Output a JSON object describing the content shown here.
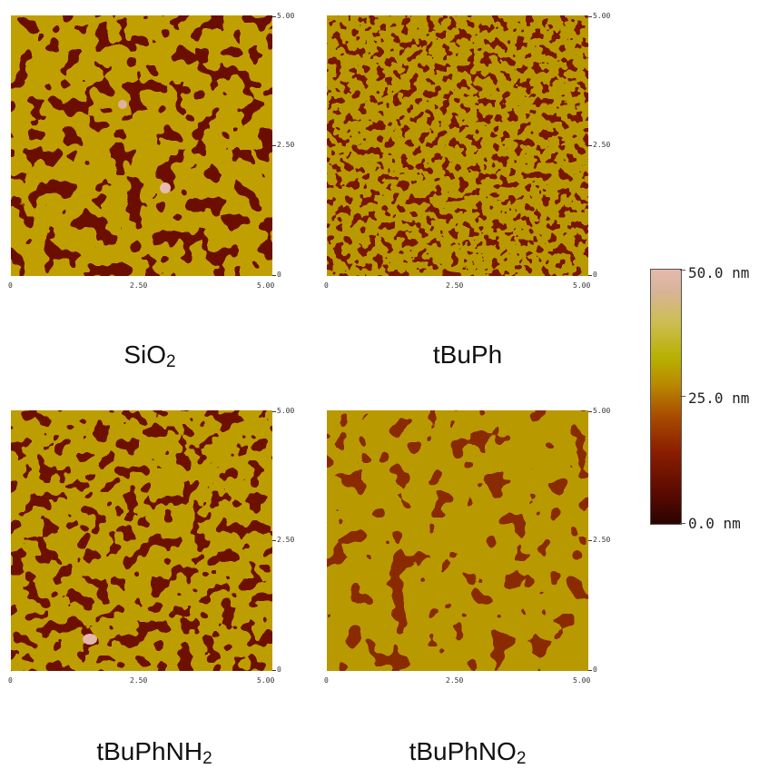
{
  "panels": [
    {
      "id": "sio2",
      "label_main": "SiO",
      "label_sub": "2",
      "y_ticks": [
        "5.00",
        "2.50",
        "0"
      ],
      "x_ticks": [
        "0",
        "2.50",
        "5.00"
      ]
    },
    {
      "id": "tbuph",
      "label_main": "tBuPh",
      "label_sub": "",
      "y_ticks": [
        "5.00",
        "2.50",
        "0"
      ],
      "x_ticks": [
        "0",
        "2.50",
        "5.00"
      ]
    },
    {
      "id": "tbuphnh2",
      "label_main": "tBuPhNH",
      "label_sub": "2",
      "y_ticks": [
        "5.00",
        "2.50",
        "0"
      ],
      "x_ticks": [
        "0",
        "2.50",
        "5.00"
      ]
    },
    {
      "id": "tbuphno2",
      "label_main": "tBuPhNO",
      "label_sub": "2",
      "y_ticks": [
        "5.00",
        "2.50",
        "0"
      ],
      "x_ticks": [
        "0",
        "2.50",
        "5.00"
      ]
    }
  ],
  "colorbar": {
    "labels": [
      "50.0 nm",
      "25.0 nm",
      "0.0 nm"
    ],
    "colors": [
      "#2a0400",
      "#8a1d00",
      "#b98a00",
      "#cdbe55",
      "#e6b9ad"
    ]
  }
}
